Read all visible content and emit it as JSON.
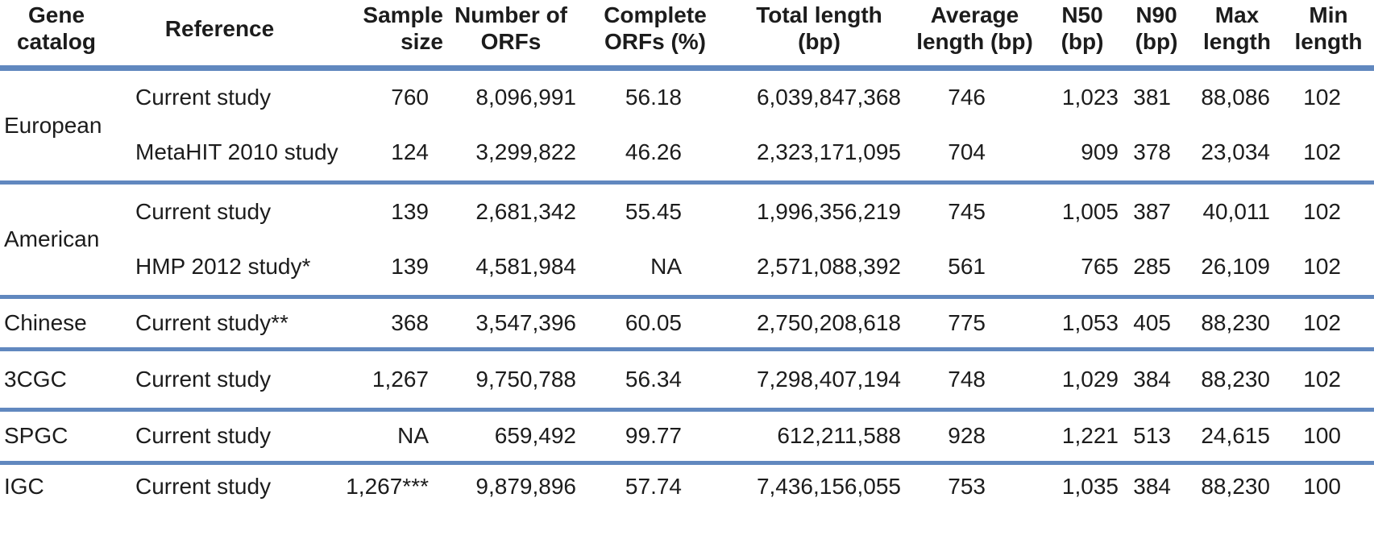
{
  "colors": {
    "rule_blue": "#6188bf",
    "text": "#1c1c1c",
    "background": "#ffffff"
  },
  "table": {
    "columns": [
      {
        "id": "gene-catalog",
        "label": "Gene\ncatalog"
      },
      {
        "id": "reference",
        "label": "Reference"
      },
      {
        "id": "sample-size",
        "label": "Sample\nsize"
      },
      {
        "id": "number-of-orfs",
        "label": "Number of\nORFs"
      },
      {
        "id": "complete-orfs-pct",
        "label": "Complete\nORFs (%)"
      },
      {
        "id": "total-length-bp",
        "label": "Total length\n(bp)"
      },
      {
        "id": "average-length-bp",
        "label": "Average\nlength (bp)"
      },
      {
        "id": "n50-bp",
        "label": "N50\n(bp)"
      },
      {
        "id": "n90-bp",
        "label": "N90\n(bp)"
      },
      {
        "id": "max-length",
        "label": "Max\nlength"
      },
      {
        "id": "min-length",
        "label": "Min\nlength"
      }
    ],
    "groups": [
      {
        "catalog": "European",
        "rows": [
          {
            "cells": [
              "Current study",
              "760",
              "8,096,991",
              "56.18",
              "6,039,847,368",
              "746",
              "1,023",
              "381",
              "88,086",
              "102"
            ]
          },
          {
            "cells": [
              "MetaHIT 2010 study",
              "124",
              "3,299,822",
              "46.26",
              "2,323,171,095",
              "704",
              "909",
              "378",
              "23,034",
              "102"
            ]
          }
        ]
      },
      {
        "catalog": "American",
        "rows": [
          {
            "cells": [
              "Current study",
              "139",
              "2,681,342",
              "55.45",
              "1,996,356,219",
              "745",
              "1,005",
              "387",
              "40,011",
              "102"
            ]
          },
          {
            "cells": [
              "HMP 2012 study*",
              "139",
              "4,581,984",
              "NA",
              "2,571,088,392",
              "561",
              "765",
              "285",
              "26,109",
              "102"
            ]
          }
        ]
      },
      {
        "catalog": "Chinese",
        "rows": [
          {
            "cells": [
              "Current study**",
              "368",
              "3,547,396",
              "60.05",
              "2,750,208,618",
              "775",
              "1,053",
              "405",
              "88,230",
              "102"
            ]
          }
        ]
      },
      {
        "catalog": "3CGC",
        "rows": [
          {
            "cells": [
              "Current study",
              "1,267",
              "9,750,788",
              "56.34",
              "7,298,407,194",
              "748",
              "1,029",
              "384",
              "88,230",
              "102"
            ]
          }
        ]
      },
      {
        "catalog": "SPGC",
        "rows": [
          {
            "cells": [
              "Current study",
              "NA",
              "659,492",
              "99.77",
              "612,211,588",
              "928",
              "1,221",
              "513",
              "24,615",
              "100"
            ]
          }
        ]
      },
      {
        "catalog": "IGC",
        "rows": [
          {
            "cells": [
              "Current study",
              "1,267***",
              "9,879,896",
              "57.74",
              "7,436,156,055",
              "753",
              "1,035",
              "384",
              "88,230",
              "100"
            ]
          }
        ]
      }
    ]
  }
}
